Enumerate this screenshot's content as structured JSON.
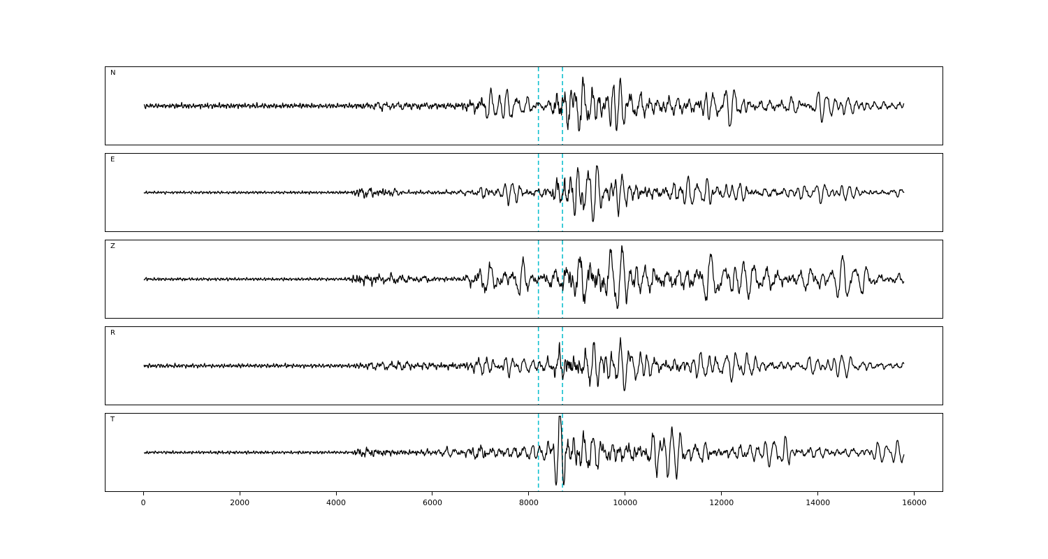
{
  "figure": {
    "background": "#ffffff",
    "trace_color": "#000000",
    "panel_border_color": "#000000",
    "pick_line_color": "#0fbfcf"
  },
  "chart_data": {
    "type": "line",
    "title": "",
    "xlabel": "",
    "ylabel": "",
    "legend": "none",
    "grid": false,
    "x_range": [
      -800,
      16600
    ],
    "data_x_range": [
      0,
      15800
    ],
    "x_ticks": [
      0,
      2000,
      4000,
      6000,
      8000,
      10000,
      12000,
      14000,
      16000
    ],
    "pick_lines": [
      {
        "x": 8200,
        "style": "dashed"
      },
      {
        "x": 8700,
        "style": "dashed"
      }
    ],
    "sample_step": 7,
    "hf_periods": [
      [
        60,
        0.6
      ],
      [
        41,
        0.5
      ],
      [
        27,
        0.35
      ],
      [
        88,
        0.4
      ]
    ],
    "hf_mix": [
      [
        0,
        0.85
      ],
      [
        4200,
        0.85
      ],
      [
        4600,
        0.45
      ],
      [
        6900,
        0.33
      ],
      [
        7300,
        0.16
      ],
      [
        16000,
        0.12
      ]
    ],
    "channels": [
      {
        "label": "N",
        "seed": 11,
        "periods": [
          [
            195,
            0.8
          ],
          [
            148,
            0.65
          ],
          [
            240,
            0.5
          ],
          [
            112,
            0.35
          ]
        ],
        "envelope": [
          [
            0,
            0.05
          ],
          [
            4200,
            0.05
          ],
          [
            4500,
            0.09
          ],
          [
            5500,
            0.12
          ],
          [
            6500,
            0.14
          ],
          [
            7000,
            0.28
          ],
          [
            7600,
            0.33
          ],
          [
            8100,
            0.22
          ],
          [
            8450,
            0.3
          ],
          [
            8600,
            0.95
          ],
          [
            9000,
            0.95
          ],
          [
            9400,
            0.75
          ],
          [
            10000,
            0.55
          ],
          [
            10800,
            0.5
          ],
          [
            11500,
            0.45
          ],
          [
            12500,
            0.35
          ],
          [
            13500,
            0.3
          ],
          [
            14500,
            0.28
          ],
          [
            15800,
            0.22
          ]
        ]
      },
      {
        "label": "E",
        "seed": 23,
        "periods": [
          [
            175,
            0.8
          ],
          [
            135,
            0.6
          ],
          [
            225,
            0.45
          ],
          [
            100,
            0.3
          ]
        ],
        "envelope": [
          [
            0,
            0.025
          ],
          [
            4300,
            0.03
          ],
          [
            4500,
            0.14
          ],
          [
            5000,
            0.13
          ],
          [
            5400,
            0.07
          ],
          [
            6800,
            0.08
          ],
          [
            7100,
            0.2
          ],
          [
            7600,
            0.24
          ],
          [
            8200,
            0.25
          ],
          [
            8450,
            0.35
          ],
          [
            8550,
            0.85
          ],
          [
            8900,
            0.8
          ],
          [
            9300,
            0.55
          ],
          [
            10000,
            0.45
          ],
          [
            11000,
            0.38
          ],
          [
            12000,
            0.3
          ],
          [
            13000,
            0.25
          ],
          [
            14000,
            0.2
          ],
          [
            15800,
            0.18
          ]
        ]
      },
      {
        "label": "Z",
        "seed": 37,
        "periods": [
          [
            230,
            0.9
          ],
          [
            170,
            0.6
          ],
          [
            300,
            0.5
          ],
          [
            130,
            0.3
          ]
        ],
        "envelope": [
          [
            0,
            0.03
          ],
          [
            4200,
            0.03
          ],
          [
            4500,
            0.16
          ],
          [
            5200,
            0.14
          ],
          [
            5600,
            0.09
          ],
          [
            6600,
            0.1
          ],
          [
            7000,
            0.35
          ],
          [
            7600,
            0.42
          ],
          [
            8200,
            0.35
          ],
          [
            8600,
            0.5
          ],
          [
            8800,
            0.95
          ],
          [
            9300,
            0.9
          ],
          [
            9800,
            0.65
          ],
          [
            10500,
            0.6
          ],
          [
            11200,
            0.6
          ],
          [
            12000,
            0.5
          ],
          [
            13000,
            0.5
          ],
          [
            14000,
            0.4
          ],
          [
            15000,
            0.35
          ],
          [
            15800,
            0.3
          ]
        ]
      },
      {
        "label": "R",
        "seed": 41,
        "periods": [
          [
            185,
            0.8
          ],
          [
            140,
            0.6
          ],
          [
            245,
            0.45
          ],
          [
            108,
            0.3
          ]
        ],
        "envelope": [
          [
            0,
            0.04
          ],
          [
            4300,
            0.04
          ],
          [
            4500,
            0.1
          ],
          [
            5500,
            0.12
          ],
          [
            6500,
            0.13
          ],
          [
            7000,
            0.22
          ],
          [
            7600,
            0.26
          ],
          [
            8100,
            0.2
          ],
          [
            8450,
            0.35
          ],
          [
            8600,
            0.95
          ],
          [
            8900,
            0.85
          ],
          [
            9300,
            0.6
          ],
          [
            10000,
            0.5
          ],
          [
            11000,
            0.42
          ],
          [
            12000,
            0.32
          ],
          [
            13000,
            0.28
          ],
          [
            14000,
            0.22
          ],
          [
            15800,
            0.18
          ]
        ]
      },
      {
        "label": "T",
        "seed": 53,
        "periods": [
          [
            180,
            0.8
          ],
          [
            138,
            0.6
          ],
          [
            235,
            0.5
          ],
          [
            105,
            0.3
          ]
        ],
        "envelope": [
          [
            0,
            0.03
          ],
          [
            4300,
            0.03
          ],
          [
            4500,
            0.13
          ],
          [
            5200,
            0.1
          ],
          [
            6500,
            0.1
          ],
          [
            7000,
            0.25
          ],
          [
            7700,
            0.3
          ],
          [
            8200,
            0.28
          ],
          [
            8500,
            0.5
          ],
          [
            8650,
            0.9
          ],
          [
            9000,
            0.75
          ],
          [
            9500,
            0.6
          ],
          [
            10200,
            0.55
          ],
          [
            11000,
            0.45
          ],
          [
            12000,
            0.35
          ],
          [
            13000,
            0.3
          ],
          [
            14000,
            0.25
          ],
          [
            15800,
            0.2
          ]
        ]
      }
    ]
  }
}
